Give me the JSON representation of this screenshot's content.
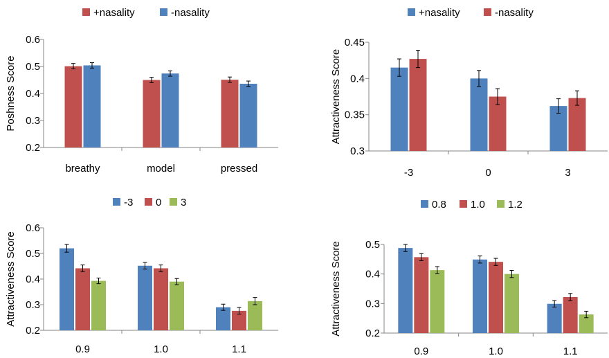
{
  "chart_data": [
    {
      "type": "bar",
      "ylabel": "Poshness Score",
      "xlabel": "",
      "ylim": [
        0.2,
        0.6
      ],
      "yticks": [
        "0.2",
        "0.3",
        "0.4",
        "0.5",
        "0.6"
      ],
      "categories": [
        "breathy",
        "model",
        "pressed"
      ],
      "legend_position": "top",
      "series": [
        {
          "name": "+nasality",
          "color": "#C0504D",
          "values": [
            0.501,
            0.45,
            0.451
          ],
          "errors": [
            0.01,
            0.01,
            0.01
          ]
        },
        {
          "name": "-nasality",
          "color": "#4F81BD",
          "values": [
            0.504,
            0.474,
            0.436
          ],
          "errors": [
            0.01,
            0.01,
            0.01
          ]
        }
      ]
    },
    {
      "type": "bar",
      "ylabel": "Attractiveness Score",
      "xlabel": "",
      "ylim": [
        0.3,
        0.45
      ],
      "yticks": [
        "0.3",
        "0.35",
        "0.4",
        "0.45"
      ],
      "categories": [
        "-3",
        "0",
        "3"
      ],
      "legend_position": "top",
      "series": [
        {
          "name": "+nasality",
          "color": "#4F81BD",
          "values": [
            0.415,
            0.4,
            0.362
          ],
          "errors": [
            0.012,
            0.011,
            0.01
          ]
        },
        {
          "name": "-nasality",
          "color": "#C0504D",
          "values": [
            0.427,
            0.375,
            0.373
          ],
          "errors": [
            0.012,
            0.011,
            0.01
          ]
        }
      ]
    },
    {
      "type": "bar",
      "ylabel": "Attractiveness Score",
      "xlabel": "",
      "ylim": [
        0.2,
        0.6
      ],
      "yticks": [
        "0.2",
        "0.3",
        "0.4",
        "0.5",
        "0.6"
      ],
      "categories": [
        "0.9",
        "1.0",
        "1.1"
      ],
      "legend_position": "top",
      "series": [
        {
          "name": "-3",
          "color": "#4F81BD",
          "values": [
            0.52,
            0.452,
            0.29
          ],
          "errors": [
            0.015,
            0.013,
            0.012
          ]
        },
        {
          "name": "0",
          "color": "#C0504D",
          "values": [
            0.442,
            0.442,
            0.276
          ],
          "errors": [
            0.013,
            0.013,
            0.013
          ]
        },
        {
          "name": "3",
          "color": "#9BBB59",
          "values": [
            0.393,
            0.39,
            0.314
          ],
          "errors": [
            0.011,
            0.012,
            0.014
          ]
        }
      ]
    },
    {
      "type": "bar",
      "ylabel": "Attractiveness Score",
      "xlabel": "",
      "ylim": [
        0.2,
        0.5
      ],
      "yticks": [
        "0.2",
        "0.3",
        "0.4",
        "0.5"
      ],
      "categories": [
        "0.9",
        "1.0",
        "1.1"
      ],
      "legend_position": "top",
      "series": [
        {
          "name": "0.8",
          "color": "#4F81BD",
          "values": [
            0.488,
            0.449,
            0.299
          ],
          "errors": [
            0.012,
            0.012,
            0.011
          ]
        },
        {
          "name": "1.0",
          "color": "#C0504D",
          "values": [
            0.457,
            0.441,
            0.322
          ],
          "errors": [
            0.012,
            0.012,
            0.012
          ]
        },
        {
          "name": "1.2",
          "color": "#9BBB59",
          "values": [
            0.413,
            0.4,
            0.263
          ],
          "errors": [
            0.012,
            0.012,
            0.011
          ]
        }
      ]
    }
  ]
}
